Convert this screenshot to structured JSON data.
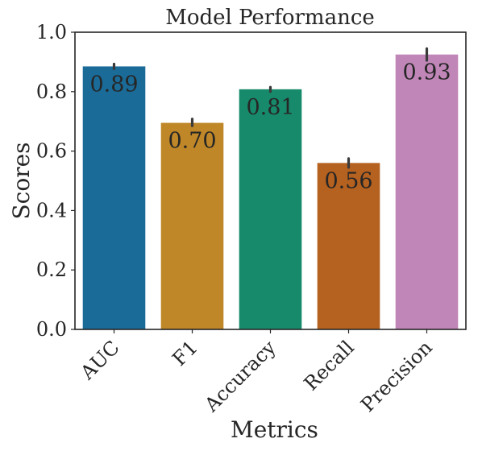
{
  "chart_data": {
    "type": "bar",
    "title": "Model Performance",
    "xlabel": "Metrics",
    "ylabel": "Scores",
    "ylim": [
      0,
      1.0
    ],
    "yticks": [
      0.0,
      0.2,
      0.4,
      0.6,
      0.8,
      1.0
    ],
    "ytick_labels": [
      "0.0",
      "0.2",
      "0.4",
      "0.6",
      "0.8",
      "1.0"
    ],
    "grid": false,
    "categories": [
      "AUC",
      "F1",
      "Accuracy",
      "Recall",
      "Precision"
    ],
    "values": [
      0.885,
      0.695,
      0.808,
      0.56,
      0.925
    ],
    "value_labels": [
      "0.89",
      "0.70",
      "0.81",
      "0.56",
      "0.93"
    ],
    "error_low": [
      0.877,
      0.685,
      0.8,
      0.545,
      0.905
    ],
    "error_high": [
      0.893,
      0.708,
      0.815,
      0.575,
      0.945
    ],
    "colors": [
      "#1a6b98",
      "#bf8728",
      "#178a6b",
      "#b5611f",
      "#c186b8"
    ]
  }
}
